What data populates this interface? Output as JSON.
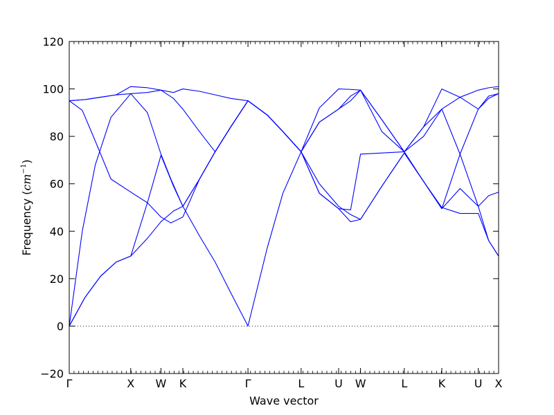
{
  "chart_data": {
    "type": "line",
    "xlabel": "Wave vector",
    "ylabel": {
      "text": "Frequency (",
      "math": "cm",
      "sup": "−1",
      "close": ")"
    },
    "ylim": [
      -20,
      120
    ],
    "yticks": [
      "−20",
      "0",
      "20",
      "40",
      "60",
      "80",
      "100",
      "120"
    ],
    "ytick_values": [
      -20,
      0,
      20,
      40,
      60,
      80,
      100,
      120
    ],
    "xlim": [
      0,
      8.24
    ],
    "high_symmetry_points": [
      {
        "label": "Γ",
        "x": 0.0
      },
      {
        "label": "X",
        "x": 1.18
      },
      {
        "label": "W",
        "x": 1.76
      },
      {
        "label": "K",
        "x": 2.18
      },
      {
        "label": "Γ",
        "x": 3.43
      },
      {
        "label": "L",
        "x": 4.45
      },
      {
        "label": "U",
        "x": 5.17
      },
      {
        "label": "W",
        "x": 5.59
      },
      {
        "label": "L",
        "x": 6.43
      },
      {
        "label": "K",
        "x": 7.15
      },
      {
        "label": "U",
        "x": 7.85
      },
      {
        "label": "X",
        "x": 8.24
      }
    ],
    "zero_line": {
      "y": 0,
      "style": "dotted"
    },
    "series_color": "#0000ff",
    "series": [
      {
        "x": [
          0,
          0.3,
          0.6,
          0.9,
          1.18,
          1.5,
          1.76,
          2.0,
          2.18,
          2.5,
          2.8,
          3.1,
          3.43,
          3.8,
          4.1,
          4.45,
          4.8,
          5.17,
          5.4,
          5.59,
          6.0,
          6.43,
          6.8,
          7.15,
          7.5,
          7.85,
          8.05,
          8.24
        ],
        "y": [
          0,
          12,
          21,
          27,
          29.5,
          37,
          44,
          48.5,
          50.5,
          38,
          27,
          14,
          0,
          33,
          56,
          73.5,
          60,
          50.5,
          47,
          45,
          59,
          73,
          61,
          50,
          47.5,
          47.5,
          36,
          29.5
        ]
      },
      {
        "x": [
          0,
          0.3,
          0.6,
          0.9,
          1.18,
          1.5,
          1.76,
          2.0,
          2.18,
          2.5,
          2.8,
          3.1,
          3.43,
          3.8,
          4.1,
          4.45,
          4.8,
          5.17,
          5.4,
          5.59,
          6.0,
          6.43,
          6.8,
          7.15,
          7.5,
          7.85,
          8.05,
          8.24
        ],
        "y": [
          0,
          12,
          21,
          27,
          29.5,
          52,
          72,
          59,
          50.5,
          62,
          73.5,
          84,
          95,
          89,
          82,
          73.5,
          56,
          49.5,
          44,
          45,
          59,
          73,
          61,
          49.5,
          72.5,
          50.5,
          36,
          29.5
        ]
      },
      {
        "x": [
          0,
          0.25,
          0.5,
          0.8,
          1.18,
          1.5,
          1.76,
          1.95,
          2.18,
          2.5,
          2.8,
          3.1,
          3.43,
          3.8,
          4.1,
          4.45,
          4.8,
          5.17,
          5.4,
          5.59,
          6.0,
          6.43,
          6.8,
          7.15,
          7.5,
          7.85,
          8.05,
          8.24
        ],
        "y": [
          0,
          40,
          68,
          88,
          98,
          90,
          72.5,
          62,
          50.5,
          62,
          73.5,
          84,
          95,
          89,
          82,
          73.5,
          86,
          91.5,
          95,
          99.5,
          82,
          73.5,
          80,
          91.5,
          72.5,
          91.5,
          97,
          98
        ]
      },
      {
        "x": [
          0,
          0.25,
          0.5,
          0.8,
          1.18,
          1.5,
          1.76,
          1.95,
          2.18,
          2.5,
          2.8,
          3.1,
          3.43,
          3.8,
          4.1,
          4.45,
          4.8,
          5.17,
          5.4,
          5.59,
          6.0,
          6.43,
          6.8,
          7.15,
          7.5,
          7.85,
          8.05,
          8.24
        ],
        "y": [
          95,
          91,
          78,
          62,
          56.5,
          52,
          46,
          43.5,
          46,
          62,
          73.5,
          84,
          95,
          89,
          82,
          73.5,
          56,
          49.5,
          49,
          72.5,
          73,
          73.5,
          61,
          49.5,
          58,
          50.5,
          55,
          56.5
        ]
      },
      {
        "x": [
          0,
          0.3,
          0.6,
          0.9,
          1.18,
          1.5,
          1.76,
          2.0,
          2.18,
          2.5,
          2.8,
          3.1,
          3.43,
          3.8,
          4.1,
          4.45,
          4.8,
          5.17,
          5.4,
          5.59,
          6.0,
          6.43,
          6.8,
          7.15,
          7.5,
          7.85,
          8.05,
          8.24
        ],
        "y": [
          95,
          95.5,
          96.5,
          97.5,
          98,
          98.5,
          99.5,
          96,
          91.5,
          82,
          73.5,
          84,
          95,
          89,
          82,
          73.5,
          86,
          91.5,
          97,
          99.5,
          87,
          73.5,
          84,
          91.5,
          96.5,
          99.5,
          100.5,
          101
        ]
      },
      {
        "x": [
          0,
          0.3,
          0.6,
          0.9,
          1.18,
          1.5,
          1.76,
          2.0,
          2.18,
          2.5,
          2.8,
          3.1,
          3.43,
          3.8,
          4.1,
          4.45,
          4.8,
          5.17,
          5.4,
          5.59,
          6.0,
          6.43,
          6.8,
          7.15,
          7.5,
          7.85,
          8.05,
          8.24
        ],
        "y": [
          95,
          95.5,
          96.5,
          97.5,
          101,
          100.5,
          99.5,
          98.5,
          100,
          99,
          97.5,
          96,
          95,
          89,
          82,
          73.5,
          92,
          100,
          99.8,
          99.5,
          87,
          73.5,
          84,
          100,
          96.5,
          91.5,
          96,
          98
        ]
      }
    ]
  }
}
